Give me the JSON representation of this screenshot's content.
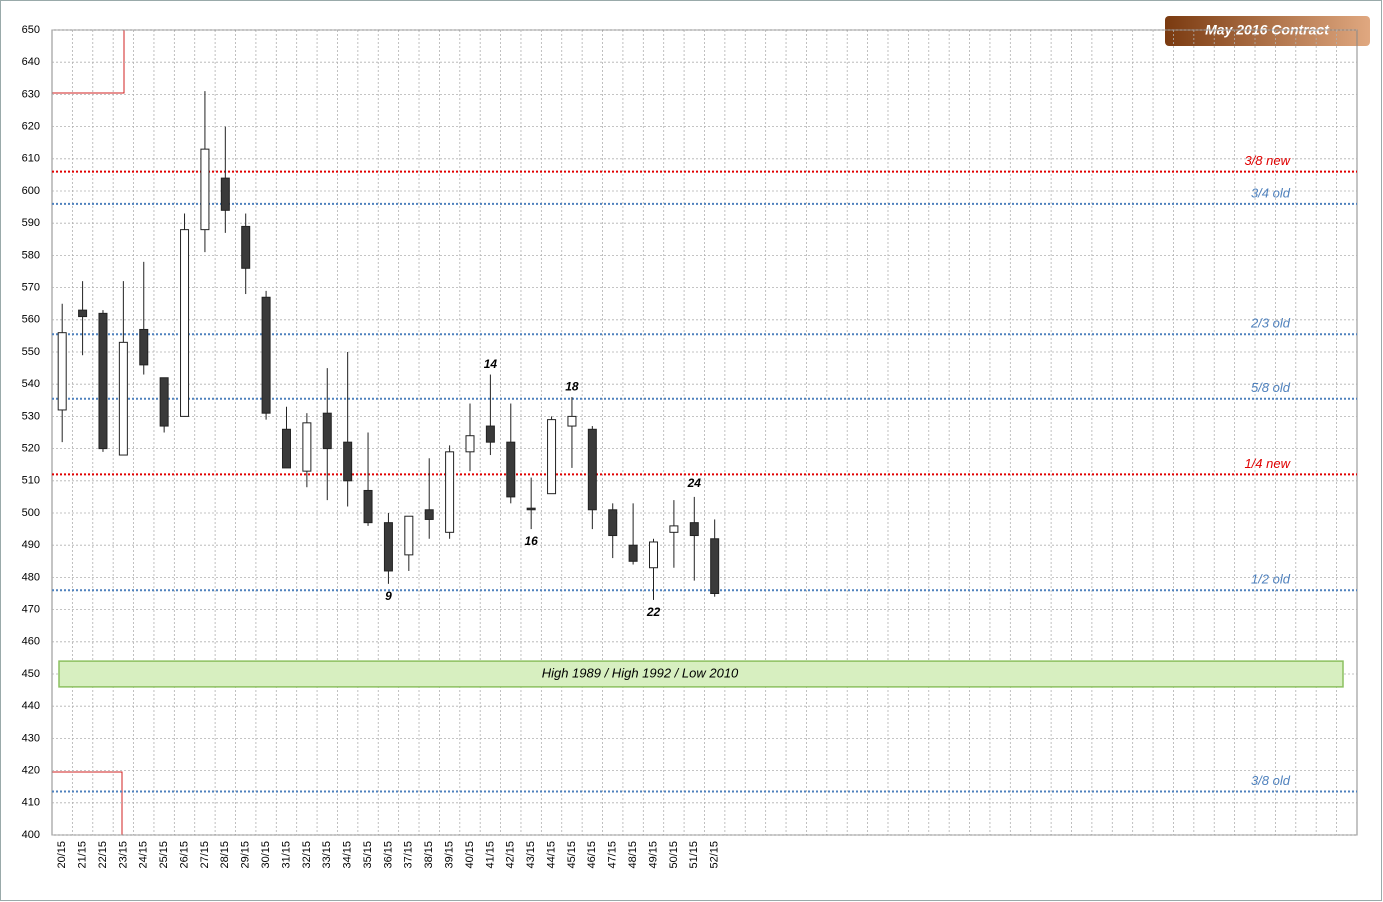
{
  "chart_data": {
    "type": "candlestick",
    "title": "May 2016 Contract",
    "categories": [
      "20/15",
      "21/15",
      "22/15",
      "23/15",
      "24/15",
      "25/15",
      "26/15",
      "27/15",
      "28/15",
      "29/15",
      "30/15",
      "31/15",
      "32/15",
      "33/15",
      "34/15",
      "35/15",
      "36/15",
      "37/15",
      "38/15",
      "39/15",
      "40/15",
      "41/15",
      "42/15",
      "43/15",
      "44/15",
      "45/15",
      "46/15",
      "47/15",
      "48/15",
      "49/15",
      "50/15",
      "51/15",
      "52/15"
    ],
    "open": [
      532,
      563,
      562,
      518,
      557,
      542,
      530,
      588,
      604,
      589,
      567,
      526,
      513,
      531,
      522,
      507,
      497,
      487,
      501,
      494,
      519,
      527,
      522,
      501.5,
      506,
      527,
      526,
      501,
      490,
      483,
      494,
      497,
      492
    ],
    "high": [
      565,
      572,
      563,
      572,
      578,
      542,
      593,
      631,
      620,
      593,
      569,
      533,
      531,
      545,
      550,
      525,
      500,
      499,
      517,
      521,
      534,
      543,
      534,
      511,
      530,
      536,
      527,
      503,
      503,
      492,
      504,
      505,
      498
    ],
    "low": [
      522,
      549,
      519,
      518,
      543,
      525,
      530,
      581,
      587,
      568,
      529,
      514,
      508,
      504,
      502,
      496,
      478,
      482,
      492,
      492,
      513,
      518,
      503,
      495,
      506,
      514,
      495,
      486,
      484,
      473,
      483,
      479,
      474
    ],
    "close": [
      556,
      561,
      520,
      553,
      546,
      527,
      588,
      613,
      594,
      576,
      531,
      514,
      528,
      520,
      510,
      497,
      482,
      499,
      498,
      519,
      524,
      522,
      505,
      501,
      529,
      530,
      501,
      493,
      485,
      491,
      496,
      493,
      475
    ],
    "up_color": "#ffffff",
    "down_color": "#3a3a3a",
    "ylim": [
      400,
      650
    ],
    "yticks": [
      400,
      410,
      420,
      430,
      440,
      450,
      460,
      470,
      480,
      490,
      500,
      510,
      520,
      530,
      540,
      550,
      560,
      570,
      580,
      590,
      600,
      610,
      620,
      630,
      640,
      650
    ],
    "grid": true,
    "levels": [
      {
        "label": "3/8 new",
        "value": 606,
        "color": "#e00000"
      },
      {
        "label": "3/4 old",
        "value": 596,
        "color": "#4f81bd"
      },
      {
        "label": "2/3 old",
        "value": 555.5,
        "color": "#4f81bd"
      },
      {
        "label": "5/8 old",
        "value": 535.5,
        "color": "#4f81bd"
      },
      {
        "label": "1/4 new",
        "value": 512,
        "color": "#e00000"
      },
      {
        "label": "1/2 old",
        "value": 476,
        "color": "#4f81bd"
      },
      {
        "label": "3/8 old",
        "value": 413.5,
        "color": "#4f81bd"
      }
    ],
    "band": {
      "label": "High 1989  / High 1992  / Low 2010",
      "from": 446,
      "to": 454
    },
    "annotations": [
      {
        "text": "9",
        "category": "36/15",
        "y": 474
      },
      {
        "text": "14",
        "category": "41/15",
        "y": 546
      },
      {
        "text": "16",
        "category": "43/15",
        "y": 491
      },
      {
        "text": "18",
        "category": "45/15",
        "y": 539
      },
      {
        "text": "22",
        "category": "49/15",
        "y": 469
      },
      {
        "text": "24",
        "category": "51/15",
        "y": 509
      }
    ]
  }
}
